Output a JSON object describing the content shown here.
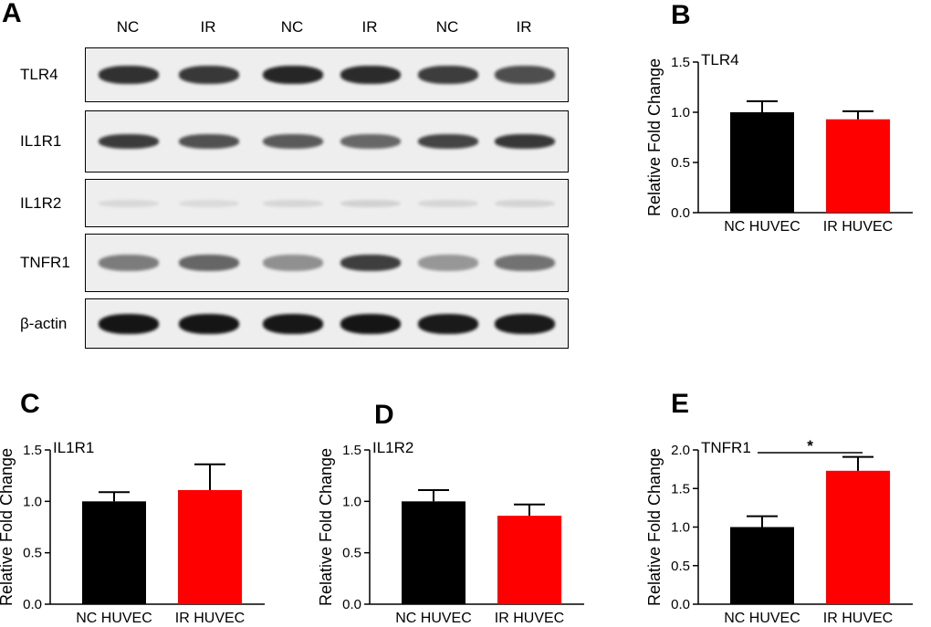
{
  "panel_letters": {
    "a": "A",
    "b": "B",
    "c": "C",
    "d": "D",
    "e": "E"
  },
  "western_blot": {
    "lanes": [
      "NC",
      "IR",
      "NC",
      "IR",
      "NC",
      "IR"
    ],
    "rows": [
      {
        "label": "TLR4",
        "band_intensity": [
          0.85,
          0.82,
          0.9,
          0.88,
          0.8,
          0.72
        ],
        "band_color": "#111111"
      },
      {
        "label": "IL1R1",
        "band_intensity": [
          0.82,
          0.72,
          0.68,
          0.62,
          0.78,
          0.84
        ],
        "band_color": "#151515"
      },
      {
        "label": "IL1R2",
        "band_intensity": [
          0.18,
          0.16,
          0.2,
          0.24,
          0.2,
          0.22
        ],
        "band_color": "#777777"
      },
      {
        "label": "TNFR1",
        "band_intensity": [
          0.55,
          0.66,
          0.45,
          0.85,
          0.42,
          0.6
        ],
        "band_color": "#202020"
      },
      {
        "label": "β-actin",
        "band_intensity": [
          0.95,
          0.95,
          0.94,
          0.95,
          0.93,
          0.93
        ],
        "band_color": "#0a0a0a"
      }
    ]
  },
  "colors": {
    "nc": "#000000",
    "ir": "#ff0000"
  },
  "chart_data": [
    {
      "type": "bar",
      "panel": "B",
      "title": "TLR4",
      "ylabel": "Relative Fold Change",
      "categories": [
        "NC HUVEC",
        "IR HUVEC"
      ],
      "values": [
        1.0,
        0.93
      ],
      "errors": [
        0.11,
        0.08
      ],
      "ylim": [
        0,
        1.5
      ],
      "yticks": [
        "0.0",
        "0.5",
        "1.0",
        "1.5"
      ],
      "significance": ""
    },
    {
      "type": "bar",
      "panel": "C",
      "title": "IL1R1",
      "ylabel": "Relative Fold Change",
      "categories": [
        "NC HUVEC",
        "IR HUVEC"
      ],
      "values": [
        1.0,
        1.11
      ],
      "errors": [
        0.09,
        0.25
      ],
      "ylim": [
        0,
        1.5
      ],
      "yticks": [
        "0.0",
        "0.5",
        "1.0",
        "1.5"
      ],
      "significance": ""
    },
    {
      "type": "bar",
      "panel": "D",
      "title": "IL1R2",
      "ylabel": "Relative Fold Change",
      "categories": [
        "NC HUVEC",
        "IR HUVEC"
      ],
      "values": [
        1.0,
        0.86
      ],
      "errors": [
        0.11,
        0.11
      ],
      "ylim": [
        0,
        1.5
      ],
      "yticks": [
        "0.0",
        "0.5",
        "1.0",
        "1.5"
      ],
      "significance": ""
    },
    {
      "type": "bar",
      "panel": "E",
      "title": "TNFR1",
      "ylabel": "Relative Fold Change",
      "categories": [
        "NC HUVEC",
        "IR HUVEC"
      ],
      "values": [
        1.0,
        1.73
      ],
      "errors": [
        0.14,
        0.18
      ],
      "ylim": [
        0,
        2.0
      ],
      "yticks": [
        "0.0",
        "0.5",
        "1.0",
        "1.5",
        "2.0"
      ],
      "significance": "*"
    }
  ]
}
